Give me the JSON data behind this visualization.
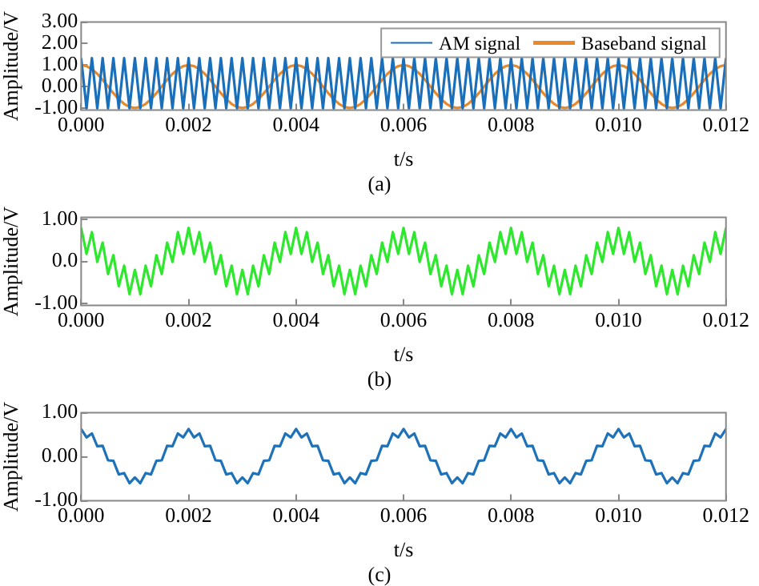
{
  "chart_data": [
    {
      "type": "line",
      "xlabel": "t/s",
      "ylabel": "Amplitude/V",
      "annotations": [
        "(a)"
      ],
      "legend": "top right",
      "grid": false,
      "xlim": [
        0,
        0.012
      ],
      "xticks": [
        {
          "value": 0,
          "label": "0.000"
        },
        {
          "value": 0.002,
          "label": "0.002"
        },
        {
          "value": 0.004,
          "label": "0.004"
        },
        {
          "value": 0.006,
          "label": "0.006"
        },
        {
          "value": 0.008,
          "label": "0.008"
        },
        {
          "value": 0.01,
          "label": "0.010"
        },
        {
          "value": 0.012,
          "label": "0.012"
        }
      ],
      "ylim": [
        -1.1,
        3
      ],
      "yticks": [
        {
          "value": -1,
          "label": "-1.00"
        },
        {
          "value": 0,
          "label": "0.00"
        },
        {
          "value": 1,
          "label": "1.00"
        },
        {
          "value": 2,
          "label": "2.00"
        },
        {
          "value": 3,
          "label": "3.00"
        }
      ],
      "x": [
        0,
        0.0001,
        0.0002,
        0.0003,
        0.0004,
        0.0005,
        0.0006,
        0.0007,
        0.0008,
        0.0009,
        0.001,
        0.0011,
        0.0012,
        0.0013,
        0.0014,
        0.0015,
        0.0016,
        0.0017,
        0.0018,
        0.0019,
        0.002,
        0.0021,
        0.0022,
        0.0023,
        0.0024,
        0.0025,
        0.0026,
        0.0027,
        0.0028,
        0.0029,
        0.003,
        0.0031,
        0.0032,
        0.0033,
        0.0034,
        0.0035,
        0.0036,
        0.0037,
        0.0038,
        0.0039,
        0.004,
        0.0041,
        0.0042,
        0.0043,
        0.0044,
        0.0045,
        0.0046,
        0.0047,
        0.0048,
        0.0049,
        0.005,
        0.0051,
        0.0052,
        0.0053,
        0.0054,
        0.0055,
        0.0056,
        0.0057,
        0.0058,
        0.0059,
        0.006,
        0.0061,
        0.0062,
        0.0063,
        0.0064,
        0.0065,
        0.0066,
        0.0067,
        0.0068,
        0.0069,
        0.007,
        0.0071,
        0.0072,
        0.0073,
        0.0074,
        0.0075,
        0.0076,
        0.0077,
        0.0078,
        0.0079,
        0.008,
        0.0081,
        0.0082,
        0.0083,
        0.0084,
        0.0085,
        0.0086,
        0.0087,
        0.0088,
        0.0089,
        0.009,
        0.0091,
        0.0092,
        0.0093,
        0.0094,
        0.0095,
        0.0096,
        0.0097,
        0.0098,
        0.0099,
        0.01,
        0.0101,
        0.0102,
        0.0103,
        0.0104,
        0.0105,
        0.0106,
        0.0107,
        0.0108,
        0.0109,
        0.011,
        0.0111,
        0.0112,
        0.0113,
        0.0114,
        0.0115,
        0.0116,
        0.0117,
        0.0118,
        0.0119,
        0.012
      ],
      "series": [
        {
          "name": "AM signal",
          "color": "#1a6fba",
          "values": [
            1.32,
            -1.02,
            1.32,
            -1.02,
            1.32,
            -1.02,
            1.32,
            -1.02,
            1.32,
            -1.02,
            1.32,
            -1.02,
            1.32,
            -1.02,
            1.32,
            -1.02,
            1.32,
            -1.02,
            1.32,
            -1.02,
            1.32,
            -1.02,
            1.32,
            -1.02,
            1.32,
            -1.02,
            1.32,
            -1.02,
            1.32,
            -1.02,
            1.32,
            -1.02,
            1.32,
            -1.02,
            1.32,
            -1.02,
            1.32,
            -1.02,
            1.32,
            -1.02,
            1.32,
            -1.02,
            1.32,
            -1.02,
            1.32,
            -1.02,
            1.32,
            -1.02,
            1.32,
            -1.02,
            1.32,
            -1.02,
            1.32,
            -1.02,
            1.32,
            -1.02,
            1.32,
            -1.02,
            1.32,
            -1.02,
            1.32,
            -1.02,
            1.32,
            -1.02,
            1.32,
            -1.02,
            1.32,
            -1.02,
            1.32,
            -1.02,
            1.32,
            -1.02,
            1.32,
            -1.02,
            1.32,
            -1.02,
            1.32,
            -1.02,
            1.32,
            -1.02,
            1.32,
            -1.02,
            1.32,
            -1.02,
            1.32,
            -1.02,
            1.32,
            -1.02,
            1.32,
            -1.02,
            1.32,
            -1.02,
            1.32,
            -1.02,
            1.32,
            -1.02,
            1.32,
            -1.02,
            1.32,
            -1.02,
            1.32,
            -1.02,
            1.32,
            -1.02,
            1.32,
            -1.02,
            1.32,
            -1.02,
            1.32,
            -1.02,
            1.32,
            -1.02,
            1.32,
            -1.02,
            1.32,
            -1.02,
            1.32,
            -1.02,
            1.32,
            -1.02,
            1.32
          ]
        },
        {
          "name": "Baseband signal",
          "color": "#e8892c",
          "values": [
            1,
            0.95,
            0.81,
            0.59,
            0.31,
            0,
            -0.31,
            -0.59,
            -0.81,
            -0.95,
            -1,
            -0.95,
            -0.81,
            -0.59,
            -0.31,
            0,
            0.31,
            0.59,
            0.81,
            0.95,
            1,
            0.95,
            0.81,
            0.59,
            0.31,
            0,
            -0.31,
            -0.59,
            -0.81,
            -0.95,
            -1,
            -0.95,
            -0.81,
            -0.59,
            -0.31,
            0,
            0.31,
            0.59,
            0.81,
            0.95,
            1,
            0.95,
            0.81,
            0.59,
            0.31,
            0,
            -0.31,
            -0.59,
            -0.81,
            -0.95,
            -1,
            -0.95,
            -0.81,
            -0.59,
            -0.31,
            0,
            0.31,
            0.59,
            0.81,
            0.95,
            1,
            0.95,
            0.81,
            0.59,
            0.31,
            0,
            -0.31,
            -0.59,
            -0.81,
            -0.95,
            -1,
            -0.95,
            -0.81,
            -0.59,
            -0.31,
            0,
            0.31,
            0.59,
            0.81,
            0.95,
            1,
            0.95,
            0.81,
            0.59,
            0.31,
            0,
            -0.31,
            -0.59,
            -0.81,
            -0.95,
            -1,
            -0.95,
            -0.81,
            -0.59,
            -0.31,
            0,
            0.31,
            0.59,
            0.81,
            0.95,
            1,
            0.95,
            0.81,
            0.59,
            0.31,
            0,
            -0.31,
            -0.59,
            -0.81,
            -0.95,
            -1,
            -0.95,
            -0.81,
            -0.59,
            -0.31,
            0,
            0.31,
            0.59,
            0.81,
            0.95,
            1
          ]
        }
      ]
    },
    {
      "type": "line",
      "xlabel": "t/s",
      "ylabel": "Amplitude/V",
      "annotations": [
        "(b)"
      ],
      "grid": false,
      "xlim": [
        0,
        0.012
      ],
      "xticks": [
        {
          "value": 0,
          "label": "0.000"
        },
        {
          "value": 0.002,
          "label": "0.002"
        },
        {
          "value": 0.004,
          "label": "0.004"
        },
        {
          "value": 0.006,
          "label": "0.006"
        },
        {
          "value": 0.008,
          "label": "0.008"
        },
        {
          "value": 0.01,
          "label": "0.010"
        },
        {
          "value": 0.012,
          "label": "0.012"
        }
      ],
      "ylim": [
        -1.05,
        1.05
      ],
      "yticks": [
        {
          "value": -1,
          "label": "-1.00"
        },
        {
          "value": 0,
          "label": "0.0"
        },
        {
          "value": 1,
          "label": "1.00"
        }
      ],
      "x": [
        0,
        0.0001,
        0.0002,
        0.0003,
        0.0004,
        0.0005,
        0.0006,
        0.0007,
        0.0008,
        0.0009,
        0.001,
        0.0011,
        0.0012,
        0.0013,
        0.0014,
        0.0015,
        0.0016,
        0.0017,
        0.0018,
        0.0019,
        0.002,
        0.0021,
        0.0022,
        0.0023,
        0.0024,
        0.0025,
        0.0026,
        0.0027,
        0.0028,
        0.0029,
        0.003,
        0.0031,
        0.0032,
        0.0033,
        0.0034,
        0.0035,
        0.0036,
        0.0037,
        0.0038,
        0.0039,
        0.004,
        0.0041,
        0.0042,
        0.0043,
        0.0044,
        0.0045,
        0.0046,
        0.0047,
        0.0048,
        0.0049,
        0.005,
        0.0051,
        0.0052,
        0.0053,
        0.0054,
        0.0055,
        0.0056,
        0.0057,
        0.0058,
        0.0059,
        0.006,
        0.0061,
        0.0062,
        0.0063,
        0.0064,
        0.0065,
        0.0066,
        0.0067,
        0.0068,
        0.0069,
        0.007,
        0.0071,
        0.0072,
        0.0073,
        0.0074,
        0.0075,
        0.0076,
        0.0077,
        0.0078,
        0.0079,
        0.008,
        0.0081,
        0.0082,
        0.0083,
        0.0084,
        0.0085,
        0.0086,
        0.0087,
        0.0088,
        0.0089,
        0.009,
        0.0091,
        0.0092,
        0.0093,
        0.0094,
        0.0095,
        0.0096,
        0.0097,
        0.0098,
        0.0099,
        0.01,
        0.0101,
        0.0102,
        0.0103,
        0.0104,
        0.0105,
        0.0106,
        0.0107,
        0.0108,
        0.0109,
        0.011,
        0.0111,
        0.0112,
        0.0113,
        0.0114,
        0.0115,
        0.0116,
        0.0117,
        0.0118,
        0.0119,
        0.012
      ],
      "series": [
        {
          "color": "#2ee82e",
          "values": [
            0.8,
            0.18,
            0.7,
            -0.01,
            0.45,
            -0.3,
            0.15,
            -0.59,
            -0.1,
            -0.78,
            -0.2,
            -0.78,
            -0.1,
            -0.59,
            0.15,
            -0.3,
            0.45,
            -0.01,
            0.7,
            0.18,
            0.8,
            0.18,
            0.7,
            -0.01,
            0.45,
            -0.3,
            0.15,
            -0.59,
            -0.1,
            -0.78,
            -0.2,
            -0.78,
            -0.1,
            -0.59,
            0.15,
            -0.3,
            0.45,
            -0.01,
            0.7,
            0.18,
            0.8,
            0.18,
            0.7,
            -0.01,
            0.45,
            -0.3,
            0.15,
            -0.59,
            -0.1,
            -0.78,
            -0.2,
            -0.78,
            -0.1,
            -0.59,
            0.15,
            -0.3,
            0.45,
            -0.01,
            0.7,
            0.18,
            0.8,
            0.18,
            0.7,
            -0.01,
            0.45,
            -0.3,
            0.15,
            -0.59,
            -0.1,
            -0.78,
            -0.2,
            -0.78,
            -0.1,
            -0.59,
            0.15,
            -0.3,
            0.45,
            -0.01,
            0.7,
            0.18,
            0.8,
            0.18,
            0.7,
            -0.01,
            0.45,
            -0.3,
            0.15,
            -0.59,
            -0.1,
            -0.78,
            -0.2,
            -0.78,
            -0.1,
            -0.59,
            0.15,
            -0.3,
            0.45,
            -0.01,
            0.7,
            0.18,
            0.8,
            0.18,
            0.7,
            -0.01,
            0.45,
            -0.3,
            0.15,
            -0.59,
            -0.1,
            -0.78,
            -0.2,
            -0.78,
            -0.1,
            -0.59,
            0.15,
            -0.3,
            0.45,
            -0.01,
            0.7,
            0.18,
            0.8
          ]
        }
      ]
    },
    {
      "type": "line",
      "xlabel": "t/s",
      "ylabel": "Amplitude/V",
      "annotations": [
        "(c)"
      ],
      "grid": false,
      "xlim": [
        0,
        0.012
      ],
      "xticks": [
        {
          "value": 0,
          "label": "0.000"
        },
        {
          "value": 0.002,
          "label": "0.002"
        },
        {
          "value": 0.004,
          "label": "0.004"
        },
        {
          "value": 0.006,
          "label": "0.006"
        },
        {
          "value": 0.008,
          "label": "0.008"
        },
        {
          "value": 0.01,
          "label": "0.010"
        },
        {
          "value": 0.012,
          "label": "0.012"
        }
      ],
      "ylim": [
        -1,
        1
      ],
      "yticks": [
        {
          "value": -1,
          "label": "-1.00"
        },
        {
          "value": 0,
          "label": "0.00"
        },
        {
          "value": 1,
          "label": "1.00"
        }
      ],
      "x": [
        0,
        0.0001,
        0.0002,
        0.0003,
        0.0004,
        0.0005,
        0.0006,
        0.0007,
        0.0008,
        0.0009,
        0.001,
        0.0011,
        0.0012,
        0.0013,
        0.0014,
        0.0015,
        0.0016,
        0.0017,
        0.0018,
        0.0019,
        0.002,
        0.0021,
        0.0022,
        0.0023,
        0.0024,
        0.0025,
        0.0026,
        0.0027,
        0.0028,
        0.0029,
        0.003,
        0.0031,
        0.0032,
        0.0033,
        0.0034,
        0.0035,
        0.0036,
        0.0037,
        0.0038,
        0.0039,
        0.004,
        0.0041,
        0.0042,
        0.0043,
        0.0044,
        0.0045,
        0.0046,
        0.0047,
        0.0048,
        0.0049,
        0.005,
        0.0051,
        0.0052,
        0.0053,
        0.0054,
        0.0055,
        0.0056,
        0.0057,
        0.0058,
        0.0059,
        0.006,
        0.0061,
        0.0062,
        0.0063,
        0.0064,
        0.0065,
        0.0066,
        0.0067,
        0.0068,
        0.0069,
        0.007,
        0.0071,
        0.0072,
        0.0073,
        0.0074,
        0.0075,
        0.0076,
        0.0077,
        0.0078,
        0.0079,
        0.008,
        0.0081,
        0.0082,
        0.0083,
        0.0084,
        0.0085,
        0.0086,
        0.0087,
        0.0088,
        0.0089,
        0.009,
        0.0091,
        0.0092,
        0.0093,
        0.0094,
        0.0095,
        0.0096,
        0.0097,
        0.0098,
        0.0099,
        0.01,
        0.0101,
        0.0102,
        0.0103,
        0.0104,
        0.0105,
        0.0106,
        0.0107,
        0.0108,
        0.0109,
        0.011,
        0.0111,
        0.0112,
        0.0113,
        0.0114,
        0.0115,
        0.0116,
        0.0117,
        0.0118,
        0.0119,
        0.012
      ],
      "series": [
        {
          "color": "#1f72b8",
          "values": [
            0.63,
            0.44,
            0.53,
            0.24,
            0.25,
            -0.08,
            -0.09,
            -0.4,
            -0.37,
            -0.6,
            -0.47,
            -0.6,
            -0.37,
            -0.4,
            -0.09,
            -0.08,
            0.25,
            0.24,
            0.53,
            0.44,
            0.63,
            0.44,
            0.53,
            0.24,
            0.25,
            -0.08,
            -0.09,
            -0.4,
            -0.37,
            -0.6,
            -0.47,
            -0.6,
            -0.37,
            -0.4,
            -0.09,
            -0.08,
            0.25,
            0.24,
            0.53,
            0.44,
            0.63,
            0.44,
            0.53,
            0.24,
            0.25,
            -0.08,
            -0.09,
            -0.4,
            -0.37,
            -0.6,
            -0.47,
            -0.6,
            -0.37,
            -0.4,
            -0.09,
            -0.08,
            0.25,
            0.24,
            0.53,
            0.44,
            0.63,
            0.44,
            0.53,
            0.24,
            0.25,
            -0.08,
            -0.09,
            -0.4,
            -0.37,
            -0.6,
            -0.47,
            -0.6,
            -0.37,
            -0.4,
            -0.09,
            -0.08,
            0.25,
            0.24,
            0.53,
            0.44,
            0.63,
            0.44,
            0.53,
            0.24,
            0.25,
            -0.08,
            -0.09,
            -0.4,
            -0.37,
            -0.6,
            -0.47,
            -0.6,
            -0.37,
            -0.4,
            -0.09,
            -0.08,
            0.25,
            0.24,
            0.53,
            0.44,
            0.63,
            0.44,
            0.53,
            0.24,
            0.25,
            -0.08,
            -0.09,
            -0.4,
            -0.37,
            -0.6,
            -0.47,
            -0.6,
            -0.37,
            -0.4,
            -0.09,
            -0.08,
            0.25,
            0.24,
            0.53,
            0.44,
            0.63
          ]
        }
      ]
    }
  ]
}
